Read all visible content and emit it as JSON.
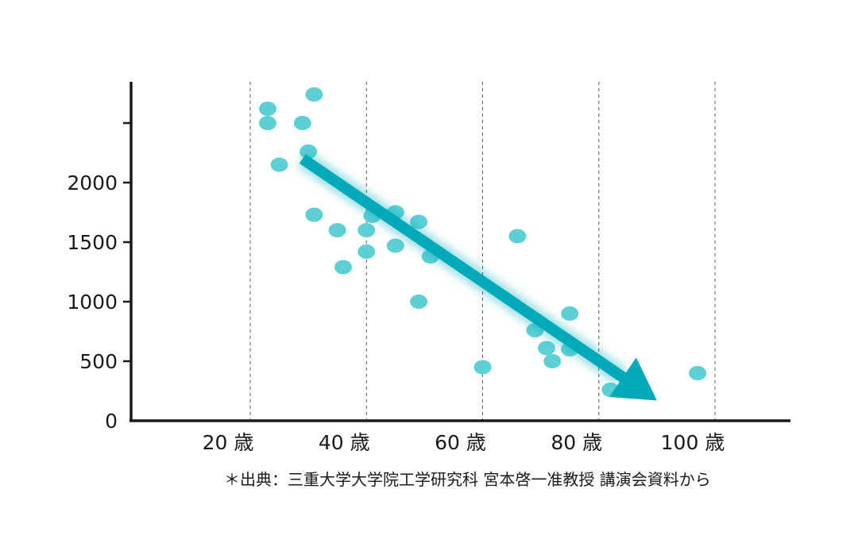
{
  "chart_data": {
    "type": "scatter",
    "title": "",
    "xlabel": "",
    "ylabel": "",
    "xlim": [
      0,
      115
    ],
    "ylim": [
      0,
      2800
    ],
    "x_ticks": [
      20,
      40,
      60,
      80,
      100
    ],
    "x_tick_labels": [
      "20 歳",
      "40 歳",
      "60 歳",
      "80 歳",
      "100 歳"
    ],
    "y_ticks": [
      0,
      500,
      1000,
      1500,
      2000,
      2500
    ],
    "y_tick_labels": [
      "0",
      "500",
      "1000",
      "1500",
      "2000",
      ""
    ],
    "grid": "vertical dashed lines at x ticks",
    "colors": {
      "points": "#5dd0d6",
      "arrow": "#00aab8",
      "axis": "#1a1a1a",
      "grid": "#555555"
    },
    "points": [
      {
        "x": 23,
        "y": 2620
      },
      {
        "x": 23,
        "y": 2500
      },
      {
        "x": 31,
        "y": 2740
      },
      {
        "x": 29,
        "y": 2500
      },
      {
        "x": 30,
        "y": 2260
      },
      {
        "x": 25,
        "y": 2150
      },
      {
        "x": 31,
        "y": 1730
      },
      {
        "x": 35,
        "y": 1600
      },
      {
        "x": 36,
        "y": 1290
      },
      {
        "x": 40,
        "y": 1600
      },
      {
        "x": 40,
        "y": 1420
      },
      {
        "x": 41,
        "y": 1720
      },
      {
        "x": 45,
        "y": 1750
      },
      {
        "x": 45,
        "y": 1470
      },
      {
        "x": 49,
        "y": 1670
      },
      {
        "x": 51,
        "y": 1380
      },
      {
        "x": 49,
        "y": 1000
      },
      {
        "x": 60,
        "y": 450
      },
      {
        "x": 66,
        "y": 1550
      },
      {
        "x": 69,
        "y": 760
      },
      {
        "x": 71,
        "y": 610
      },
      {
        "x": 72,
        "y": 500
      },
      {
        "x": 75,
        "y": 900
      },
      {
        "x": 75,
        "y": 600
      },
      {
        "x": 82,
        "y": 260
      },
      {
        "x": 97,
        "y": 400
      }
    ],
    "trend_arrow": {
      "from": [
        29,
        2200
      ],
      "to": [
        90,
        170
      ]
    }
  },
  "footnote": "＊出典：三重大学大学院工学研究科 宮本啓一准教授 講演会資料から"
}
